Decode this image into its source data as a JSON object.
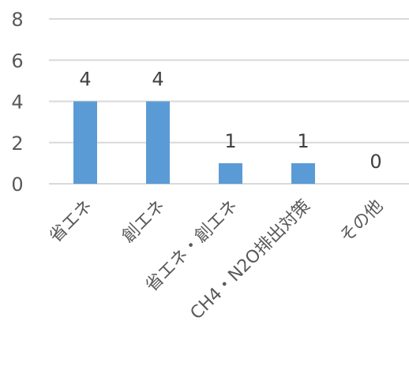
{
  "chart_data": {
    "type": "bar",
    "categories": [
      "省エネ",
      "創エネ",
      "省エネ・創エネ",
      "CH4・N2O排出対策",
      "その他"
    ],
    "values": [
      4,
      4,
      1,
      1,
      0
    ],
    "title": "",
    "xlabel": "",
    "ylabel": "",
    "ylim": [
      0,
      8
    ],
    "yticks": [
      0,
      2,
      4,
      6,
      8
    ],
    "grid": true,
    "legend": "none",
    "data_labels": true,
    "bar_color": "#5B9BD5",
    "grid_color": "#D9D9D9"
  }
}
